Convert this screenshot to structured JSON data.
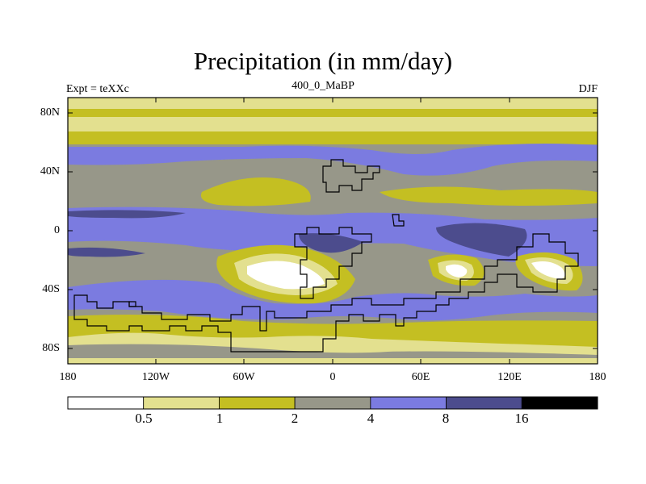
{
  "figure": {
    "title": "Precipitation (in mm/day)",
    "left_label": "Expt = teXXc",
    "center_label": "400_0_MaBP",
    "right_label": "DJF",
    "field": "Precipitation",
    "units": "mm/day",
    "projection": "cylindrical-equidistant",
    "lon_range": [
      -180,
      180
    ],
    "lat_range": [
      -90,
      90
    ]
  },
  "axes": {
    "y_ticks": [
      {
        "label": "80N",
        "lat": 80
      },
      {
        "label": "40N",
        "lat": 40
      },
      {
        "label": "0",
        "lat": 0
      },
      {
        "label": "40S",
        "lat": -40
      },
      {
        "label": "80S",
        "lat": -80
      }
    ],
    "x_ticks": [
      {
        "label": "180",
        "lon": -180
      },
      {
        "label": "120W",
        "lon": -120
      },
      {
        "label": "60W",
        "lon": -60
      },
      {
        "label": "0",
        "lon": 0
      },
      {
        "label": "60E",
        "lon": 60
      },
      {
        "label": "120E",
        "lon": 120
      },
      {
        "label": "180",
        "lon": 180
      }
    ]
  },
  "colorbar": {
    "levels": [
      "0.5",
      "1",
      "2",
      "4",
      "8",
      "16"
    ],
    "colors": [
      "#ffffff",
      "#e3e08f",
      "#c4bf22",
      "#979789",
      "#7b7be0",
      "#4c4c8d",
      "#000000"
    ]
  },
  "colors": {
    "white": "#ffffff",
    "pale": "#e3e08f",
    "olive": "#c4bf22",
    "gray": "#979789",
    "blue": "#7b7be0",
    "navy": "#4c4c8d"
  }
}
